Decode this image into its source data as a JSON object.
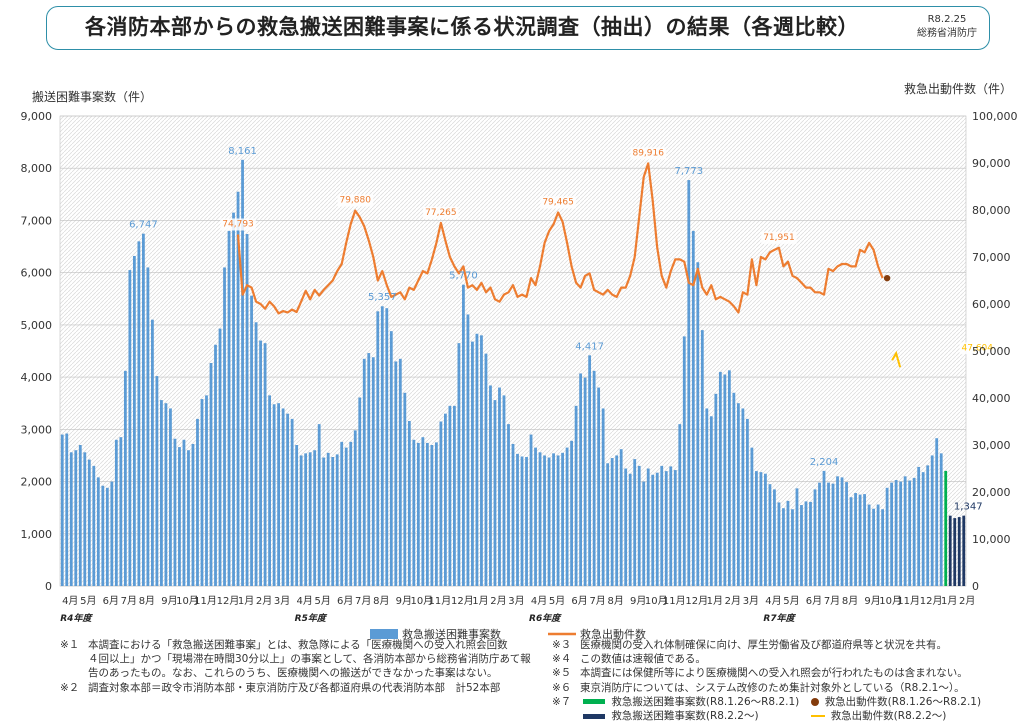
{
  "header": {
    "title": "各消防本部からの救急搬送困難事案に係る状況調査（抽出）の結果（各週比較）",
    "date": "R8.2.25",
    "org": "総務省消防庁"
  },
  "colors": {
    "bar": "#5b9bd5",
    "line": "#ed7d31",
    "bar_recent": "#00b050",
    "bar_latest": "#1f3864",
    "dot_recent": "#843c0c",
    "line_latest": "#ffc000",
    "label_bar": "#5b9bd5",
    "label_line": "#ed7d31",
    "border": "#2e8fa8"
  },
  "chart_data": {
    "type": "bar",
    "left_axis_title": "搬送困難事案数（件）",
    "right_axis_title": "救急出動件数（件）",
    "left_ticks": [
      "0",
      "1,000",
      "2,000",
      "3,000",
      "4,000",
      "5,000",
      "6,000",
      "7,000",
      "8,000",
      "9,000"
    ],
    "right_ticks": [
      "0",
      "10,000",
      "20,000",
      "30,000",
      "40,000",
      "50,000",
      "60,000",
      "70,000",
      "80,000",
      "90,000",
      "100,000"
    ],
    "ylim_left": [
      0,
      9000
    ],
    "ylim_right": [
      0,
      100000
    ],
    "month_labels": [
      {
        "label": "4月",
        "w": 0
      },
      {
        "label": "5月",
        "w": 4
      },
      {
        "label": "6月",
        "w": 9
      },
      {
        "label": "7月",
        "w": 13
      },
      {
        "label": "8月",
        "w": 17
      },
      {
        "label": "9月",
        "w": 22
      },
      {
        "label": "10月",
        "w": 26
      },
      {
        "label": "11月",
        "w": 30
      },
      {
        "label": "12月",
        "w": 35
      },
      {
        "label": "1月",
        "w": 39
      },
      {
        "label": "2月",
        "w": 43
      },
      {
        "label": "3月",
        "w": 47
      },
      {
        "label": "4月",
        "w": 52
      },
      {
        "label": "5月",
        "w": 56
      },
      {
        "label": "6月",
        "w": 61
      },
      {
        "label": "7月",
        "w": 65
      },
      {
        "label": "8月",
        "w": 69
      },
      {
        "label": "9月",
        "w": 74
      },
      {
        "label": "10月",
        "w": 78
      },
      {
        "label": "11月",
        "w": 82
      },
      {
        "label": "12月",
        "w": 87
      },
      {
        "label": "1月",
        "w": 91
      },
      {
        "label": "2月",
        "w": 95
      },
      {
        "label": "3月",
        "w": 99
      },
      {
        "label": "4月",
        "w": 104
      },
      {
        "label": "5月",
        "w": 108
      },
      {
        "label": "6月",
        "w": 113
      },
      {
        "label": "7月",
        "w": 117
      },
      {
        "label": "8月",
        "w": 121
      },
      {
        "label": "9月",
        "w": 126
      },
      {
        "label": "10月",
        "w": 130
      },
      {
        "label": "11月",
        "w": 134
      },
      {
        "label": "12月",
        "w": 139
      },
      {
        "label": "1月",
        "w": 143
      },
      {
        "label": "2月",
        "w": 147
      },
      {
        "label": "3月",
        "w": 151
      },
      {
        "label": "4月",
        "w": 156
      },
      {
        "label": "5月",
        "w": 160
      },
      {
        "label": "6月",
        "w": 165
      },
      {
        "label": "7月",
        "w": 169
      },
      {
        "label": "8月",
        "w": 173
      },
      {
        "label": "9月",
        "w": 178
      },
      {
        "label": "10月",
        "w": 182
      },
      {
        "label": "11月",
        "w": 186
      },
      {
        "label": "12月",
        "w": 191
      },
      {
        "label": "1月",
        "w": 195
      },
      {
        "label": "2月",
        "w": 199
      }
    ],
    "year_labels": [
      {
        "label": "R4年度",
        "w": 0
      },
      {
        "label": "R5年度",
        "w": 52
      },
      {
        "label": "R6年度",
        "w": 104
      },
      {
        "label": "R7年度",
        "w": 156
      }
    ],
    "series": [
      {
        "name": "救急搬送困難事案数",
        "axis": "left",
        "values": [
          2900,
          2920,
          2560,
          2600,
          2700,
          2560,
          2420,
          2300,
          2080,
          1920,
          1880,
          2000,
          2800,
          2850,
          4120,
          6050,
          6320,
          6600,
          6747,
          6100,
          5100,
          4020,
          3560,
          3500,
          3400,
          2820,
          2660,
          2800,
          2600,
          2720,
          3200,
          3580,
          3650,
          4270,
          4620,
          4930,
          6100,
          6800,
          7150,
          7550,
          8161,
          6740,
          5560,
          5050,
          4700,
          4650,
          3650,
          3480,
          3500,
          3400,
          3300,
          3200,
          2700,
          2500,
          2540,
          2560,
          2600,
          3100,
          2460,
          2550,
          2470,
          2520,
          2760,
          2650,
          2760,
          2980,
          3610,
          4350,
          4460,
          4380,
          5260,
          5357,
          5320,
          4880,
          4300,
          4350,
          3700,
          3160,
          2800,
          2740,
          2850,
          2740,
          2700,
          2750,
          3150,
          3300,
          3450,
          3450,
          4650,
          5770,
          5200,
          4680,
          4830,
          4800,
          4450,
          3840,
          3560,
          3800,
          3650,
          3100,
          2720,
          2530,
          2480,
          2470,
          2900,
          2650,
          2560,
          2500,
          2460,
          2540,
          2500,
          2550,
          2650,
          2780,
          3450,
          4070,
          3990,
          4417,
          4120,
          3800,
          3400,
          2350,
          2450,
          2500,
          2620,
          2250,
          2150,
          2430,
          2300,
          2000,
          2250,
          2130,
          2170,
          2300,
          2200,
          2290,
          2220,
          3100,
          4780,
          7773,
          6800,
          6200,
          4900,
          3400,
          3250,
          3680,
          4100,
          4050,
          4130,
          3700,
          3500,
          3400,
          3200,
          2650,
          2200,
          2180,
          2150,
          1950,
          1850,
          1600,
          1490,
          1630,
          1470,
          1870,
          1550,
          1620,
          1610,
          1850,
          1980,
          2204,
          1980,
          1960,
          2100,
          2080,
          1990,
          1700,
          1780,
          1750,
          1760,
          1560,
          1480,
          1560,
          1470,
          1880,
          1980,
          2030,
          2000,
          2100,
          2020,
          2070,
          2280,
          2180,
          2310,
          2500,
          2830,
          2540
        ],
        "color": "#5b9bd5"
      },
      {
        "name": "救急出動件数",
        "axis": "right",
        "start_week": 39,
        "values": [
          74793,
          62000,
          64000,
          63500,
          60500,
          60000,
          59000,
          60500,
          59500,
          58000,
          58500,
          58200,
          58800,
          58300,
          60500,
          62800,
          61000,
          63000,
          61800,
          63000,
          64000,
          65000,
          67000,
          68500,
          73000,
          77000,
          79880,
          78500,
          76500,
          73500,
          70000,
          65000,
          67000,
          64000,
          61500,
          62000,
          62500,
          61000,
          63500,
          63000,
          65000,
          67000,
          66500,
          69500,
          73000,
          77265,
          73500,
          70000,
          68000,
          66500,
          68000,
          63500,
          64000,
          63000,
          64500,
          62500,
          63500,
          61000,
          60500,
          62000,
          62500,
          64000,
          61500,
          62000,
          61500,
          65500,
          64000,
          68000,
          73000,
          75500,
          77000,
          79465,
          77500,
          73000,
          68000,
          64500,
          63500,
          66000,
          66500,
          63000,
          62500,
          62000,
          63000,
          62000,
          61500,
          63500,
          63500,
          66000,
          70000,
          78500,
          87000,
          89916,
          82000,
          72000,
          66000,
          63500,
          67000,
          69500,
          69500,
          69000,
          64500,
          64000,
          67500,
          63500,
          62000,
          64000,
          61000,
          61500,
          61000,
          60500,
          59500,
          58200,
          62500,
          62000,
          69500,
          64000,
          70000,
          69500,
          71000,
          71500,
          71951,
          68000,
          69000,
          66000,
          65500,
          64500,
          63500,
          63500,
          62500,
          62500,
          62000,
          67500,
          67000,
          68000,
          68500,
          68500,
          68000,
          68000,
          71500,
          71000,
          73000,
          71500,
          68000,
          65500
        ],
        "color": "#ed7d31"
      }
    ],
    "recent": {
      "green_bar": 2204,
      "navy_bars": [
        1347,
        1300,
        1320,
        1347
      ],
      "brown_dot": 65500,
      "yellow_value": 47604
    },
    "annotations": {
      "bar": [
        {
          "label": "6,747",
          "w": 18
        },
        {
          "label": "8,161",
          "w": 40
        },
        {
          "label": "5,357",
          "w": 71
        },
        {
          "label": "5,770",
          "w": 89
        },
        {
          "label": "4,417",
          "w": 117
        },
        {
          "label": "7,773",
          "w": 139
        },
        {
          "label": "2,204",
          "w": 169
        },
        {
          "label": "1,347",
          "w": 201
        }
      ],
      "line": [
        {
          "label": "74,793",
          "w": 39
        },
        {
          "label": "79,880",
          "w": 65
        },
        {
          "label": "77,265",
          "w": 84
        },
        {
          "label": "79,465",
          "w": 110
        },
        {
          "label": "89,916",
          "w": 130
        },
        {
          "label": "71,951",
          "w": 159
        },
        {
          "label": "47,604",
          "w": 203
        }
      ]
    },
    "grid": true,
    "legend": [
      "救急搬送困難事案数",
      "救急出動件数"
    ],
    "legend_position": "bottom"
  },
  "notes": {
    "left": [
      {
        "mark": "※１",
        "text": "本調査における「救急搬送困難事案」とは、救急隊による「医療機関への受入れ照会回数"
      },
      {
        "mark": "",
        "text": "４回以上」かつ「現場滞在時間30分以上」の事案として、各消防本部から総務省消防庁あて報"
      },
      {
        "mark": "",
        "text": "告のあったもの。なお、これらのうち、医療機関への搬送ができなかった事案はない。"
      },
      {
        "mark": "※２",
        "text": "調査対象本部＝政令市消防本部・東京消防庁及び各都道府県の代表消防本部　計52本部"
      }
    ],
    "right": [
      {
        "mark": "※３",
        "text": "医療機関の受入れ体制確保に向け、厚生労働省及び都道府県等と状況を共有。"
      },
      {
        "mark": "※４",
        "text": "この数値は速報値である。"
      },
      {
        "mark": "※５",
        "text": "本調査には保健所等により医療機関への受入れ照会が行われたものは含まれない。"
      },
      {
        "mark": "※６",
        "text": "東京消防庁については、システム改修のため集計対象外としている（R8.2.1〜）。"
      }
    ],
    "legend7": {
      "mark": "※７",
      "green": "救急搬送困難事案数(R8.1.26〜R8.2.1)",
      "brown": "救急出動件数(R8.1.26〜R8.2.1)",
      "navy": "救急搬送困難事案数(R8.2.2〜)",
      "yellow": "救急出動件数(R8.2.2〜)"
    }
  }
}
